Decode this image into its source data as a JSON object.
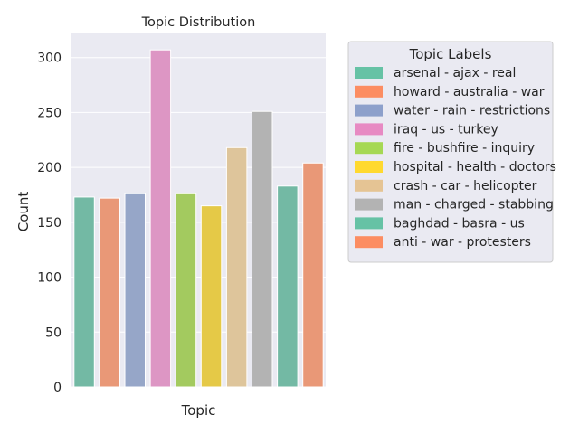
{
  "chart_data": {
    "type": "bar",
    "title": "Topic Distribution",
    "xlabel": "Topic",
    "ylabel": "Count",
    "ylim": [
      0,
      322
    ],
    "yticks": [
      0,
      50,
      100,
      150,
      200,
      250,
      300
    ],
    "grid": true,
    "legend_title": "Topic Labels",
    "legend_position": "outside-right",
    "categories": [
      "arsenal - ajax - real",
      "howard - australia - war",
      "water - rain - restrictions",
      "iraq - us - turkey",
      "fire - bushfire - inquiry",
      "hospital - health - doctors",
      "crash - car - helicopter",
      "man - charged - stabbing",
      "baghdad - basra - us",
      "anti - war - protesters"
    ],
    "values": [
      173,
      172,
      176,
      307,
      176,
      165,
      218,
      251,
      183,
      204
    ],
    "bar_colors": [
      "#73b9a4",
      "#e99877",
      "#96a6c8",
      "#dd96c4",
      "#a3ca5f",
      "#e5c947",
      "#dec59b",
      "#b3b3b3",
      "#73b9a4",
      "#e99877"
    ],
    "legend_colors": [
      "#66c2a5",
      "#fc8d62",
      "#8da0cb",
      "#e78ac3",
      "#a6d854",
      "#ffd92f",
      "#e5c494",
      "#b3b3b3",
      "#66c2a5",
      "#fc8d62"
    ]
  }
}
